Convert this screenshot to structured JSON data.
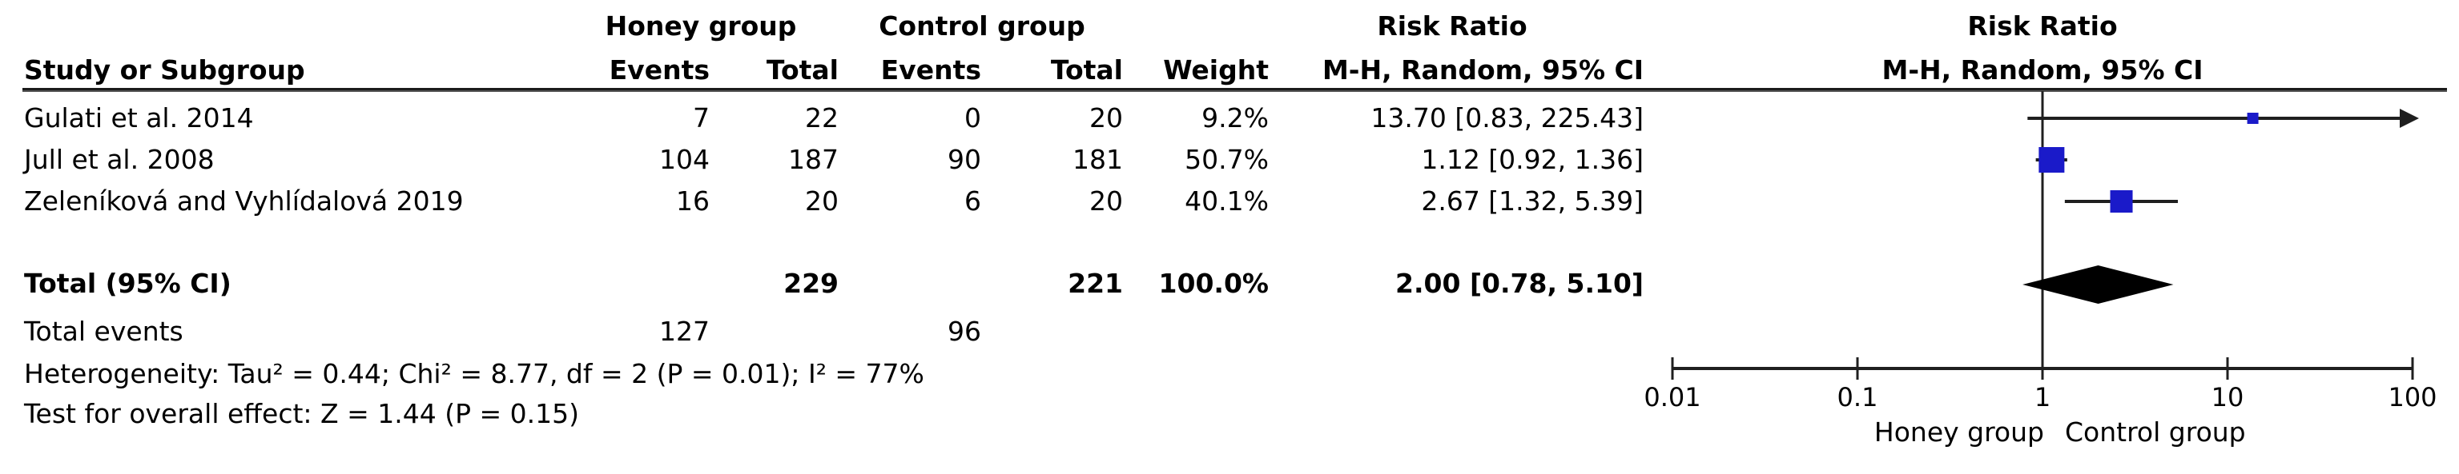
{
  "figure": {
    "background": "#ffffff",
    "text_color": "#000000",
    "marker_color": "#1a1ac9",
    "line_color": "#1f1f1f"
  },
  "table": {
    "group_headers": {
      "honey": "Honey group",
      "control": "Control group",
      "risk_ratio": "Risk Ratio"
    },
    "columns": [
      "Study or Subgroup",
      "Events",
      "Total",
      "Events",
      "Total",
      "Weight",
      "M-H, Random, 95% CI"
    ],
    "total_events_label": "Total events",
    "heterogeneity_line": "Heterogeneity: Tau² = 0.44; Chi² = 8.77, df = 2 (P = 0.01); I² = 77%",
    "overall_effect_line": "Test for overall effect: Z = 1.44 (P = 0.15)"
  },
  "plot_header": {
    "line1": "Risk Ratio",
    "line2": "M-H, Random, 95% CI"
  },
  "chart_data": {
    "type": "forest_plot",
    "effect_measure": "Risk Ratio",
    "method": "M-H, Random, 95% CI",
    "x_scale": "log10",
    "x_ticks": [
      0.01,
      0.1,
      1,
      10,
      100
    ],
    "x_tick_labels": [
      "0.01",
      "0.1",
      "1",
      "10",
      "100"
    ],
    "favours_left_label": "Honey group",
    "favours_right_label": "Control group",
    "studies": [
      {
        "name": "Gulati et al. 2014",
        "honey_events": 7,
        "honey_total": 22,
        "control_events": 0,
        "control_total": 20,
        "weight": "9.2%",
        "weight_pct": 9.2,
        "rr": 13.7,
        "ci_low": 0.83,
        "ci_high": 225.43,
        "ci_text": "13.70 [0.83, 225.43]"
      },
      {
        "name": "Jull et al. 2008",
        "honey_events": 104,
        "honey_total": 187,
        "control_events": 90,
        "control_total": 181,
        "weight": "50.7%",
        "weight_pct": 50.7,
        "rr": 1.12,
        "ci_low": 0.92,
        "ci_high": 1.36,
        "ci_text": "1.12 [0.92, 1.36]"
      },
      {
        "name": "Zeleníková and Vyhlídalová 2019",
        "honey_events": 16,
        "honey_total": 20,
        "control_events": 6,
        "control_total": 20,
        "weight": "40.1%",
        "weight_pct": 40.1,
        "rr": 2.67,
        "ci_low": 1.32,
        "ci_high": 5.39,
        "ci_text": "2.67 [1.32, 5.39]"
      }
    ],
    "total": {
      "label": "Total (95% CI)",
      "honey_total": 229,
      "control_total": 221,
      "weight": "100.0%",
      "rr": 2.0,
      "ci_low": 0.78,
      "ci_high": 5.1,
      "ci_text": "2.00 [0.78, 5.10]"
    },
    "total_events": {
      "honey": 127,
      "control": 96
    },
    "heterogeneity": {
      "tau2": 0.44,
      "chi2": 8.77,
      "df": 2,
      "p": 0.01,
      "i2": "77%"
    },
    "overall_effect": {
      "z": 1.44,
      "p": 0.15
    }
  }
}
